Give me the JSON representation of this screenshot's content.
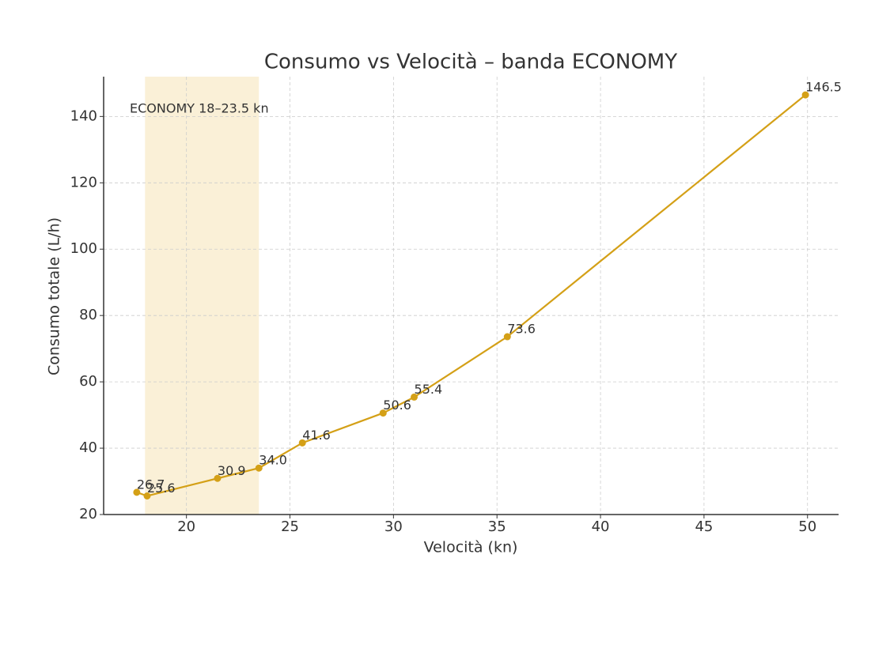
{
  "chart_data": {
    "type": "line",
    "title": "Consumo vs Velocità – banda ECONOMY",
    "x_label": "Velocità (kn)",
    "y_label": "Consumo totale (L/h)",
    "band": [
      18,
      23.5
    ],
    "band_color": "#faf0d7",
    "band_label": "ECONOMY 18–23.5 kn",
    "series": [
      {
        "name": "Consumo",
        "color": "#d4a017",
        "x": [
          17.6,
          18.1,
          21.5,
          23.5,
          25.6,
          29.5,
          31.0,
          35.5,
          49.9
        ],
        "values": [
          26.7,
          25.6,
          30.9,
          34.0,
          41.6,
          50.6,
          55.4,
          73.6,
          146.5
        ],
        "value_labels": [
          "26.7",
          "25.6",
          "30.9",
          "34.0",
          "41.6",
          "50.6",
          "55.4",
          "73.6",
          "146.5"
        ]
      }
    ],
    "xlim": [
      16,
      51.5
    ],
    "ylim": [
      20,
      152
    ],
    "xticks": [
      20,
      25,
      30,
      35,
      40,
      45,
      50
    ],
    "yticks": [
      20,
      40,
      60,
      80,
      100,
      120,
      140
    ],
    "grid": true
  }
}
